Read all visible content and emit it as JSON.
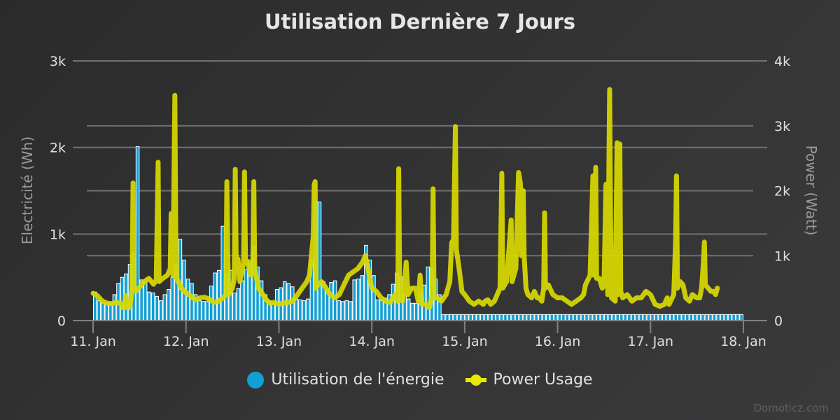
{
  "title": "Utilisation Dernière 7 Jours",
  "credits": "Domoticz.com",
  "colors": {
    "energy": "#119fd4",
    "energy_border": "#ffffff",
    "power": "#d9d900",
    "power_legend": "#e8e800",
    "grid": "#707070",
    "axis_label": "#9a9a9a",
    "tick_label": "#e0e0e0"
  },
  "legend": [
    {
      "label": "Utilisation de l'énergie",
      "symbol": "circle"
    },
    {
      "label": "Power Usage",
      "symbol": "line-marker"
    }
  ],
  "chart_data": {
    "type": "bar+line",
    "title": "Utilisation Dernière 7 Jours",
    "xlabel": "",
    "x_ticks": [
      "11. Jan",
      "12. Jan",
      "13. Jan",
      "14. Jan",
      "15. Jan",
      "16. Jan",
      "17. Jan",
      "18. Jan"
    ],
    "y_left": {
      "label": "Electricité (Wh)",
      "ticks": [
        "0",
        "1k",
        "2k",
        "3k"
      ],
      "range": [
        0,
        3000
      ]
    },
    "y_right": {
      "label": "Power (Watt)",
      "ticks": [
        "0",
        "1k",
        "2k",
        "3k",
        "4k"
      ],
      "range": [
        0,
        4000
      ]
    },
    "grid": true,
    "legend_position": "bottom",
    "series": [
      {
        "name": "Utilisation de l'énergie",
        "type": "bar",
        "axis": "left",
        "unit": "Wh",
        "interval_hours": 2,
        "start": "11. Jan 00:00",
        "values": [
          330,
          230,
          210,
          200,
          210,
          300,
          430,
          500,
          540,
          650,
          770,
          2010,
          470,
          450,
          330,
          320,
          280,
          230,
          300,
          360,
          500,
          650,
          940,
          700,
          480,
          430,
          300,
          230,
          220,
          220,
          400,
          550,
          580,
          1090,
          540,
          580,
          320,
          370,
          460,
          590,
          700,
          860,
          620,
          460,
          300,
          230,
          200,
          360,
          380,
          450,
          430,
          390,
          250,
          240,
          230,
          250,
          700,
          1380,
          1370,
          450,
          360,
          440,
          460,
          230,
          220,
          230,
          220,
          470,
          480,
          520,
          870,
          700,
          520,
          240,
          230,
          260,
          300,
          420,
          550,
          510,
          300,
          250,
          200,
          200,
          330,
          410,
          620,
          600,
          480,
          300,
          70,
          70,
          70,
          70,
          70,
          70,
          70,
          70,
          70,
          70,
          70,
          70,
          70,
          70,
          70,
          70,
          70,
          70,
          70,
          70,
          70,
          70,
          70,
          70,
          70,
          70,
          70,
          70,
          70,
          70,
          70,
          70,
          70,
          70,
          70,
          70,
          70,
          70,
          70,
          70,
          70,
          70,
          70,
          70,
          70,
          70,
          70,
          70,
          70,
          70,
          70,
          70,
          70,
          70,
          70,
          70,
          70,
          70,
          70,
          70,
          70,
          70,
          70,
          70,
          70,
          70,
          70,
          70,
          70,
          70,
          70,
          70,
          70,
          70,
          70,
          70,
          70,
          70
        ]
      },
      {
        "name": "Power Usage",
        "type": "line",
        "axis": "right",
        "unit": "Watt",
        "points_day_watt": [
          [
            0.0,
            420
          ],
          [
            0.05,
            380
          ],
          [
            0.1,
            300
          ],
          [
            0.15,
            270
          ],
          [
            0.2,
            260
          ],
          [
            0.25,
            280
          ],
          [
            0.3,
            260
          ],
          [
            0.32,
            200
          ],
          [
            0.34,
            200
          ],
          [
            0.35,
            380
          ],
          [
            0.37,
            200
          ],
          [
            0.39,
            200
          ],
          [
            0.4,
            250
          ],
          [
            0.42,
            500
          ],
          [
            0.43,
            2120
          ],
          [
            0.44,
            500
          ],
          [
            0.46,
            450
          ],
          [
            0.5,
            520
          ],
          [
            0.55,
            600
          ],
          [
            0.6,
            650
          ],
          [
            0.65,
            560
          ],
          [
            0.68,
            620
          ],
          [
            0.7,
            2440
          ],
          [
            0.71,
            600
          ],
          [
            0.75,
            650
          ],
          [
            0.8,
            700
          ],
          [
            0.83,
            800
          ],
          [
            0.84,
            1650
          ],
          [
            0.85,
            1650
          ],
          [
            0.86,
            700
          ],
          [
            0.88,
            3470
          ],
          [
            0.89,
            1300
          ],
          [
            0.9,
            650
          ],
          [
            0.95,
            500
          ],
          [
            1.0,
            430
          ],
          [
            1.05,
            380
          ],
          [
            1.1,
            320
          ],
          [
            1.15,
            350
          ],
          [
            1.2,
            360
          ],
          [
            1.25,
            330
          ],
          [
            1.3,
            280
          ],
          [
            1.35,
            300
          ],
          [
            1.4,
            350
          ],
          [
            1.43,
            400
          ],
          [
            1.44,
            2140
          ],
          [
            1.45,
            1000
          ],
          [
            1.46,
            400
          ],
          [
            1.5,
            500
          ],
          [
            1.52,
            650
          ],
          [
            1.53,
            2330
          ],
          [
            1.54,
            950
          ],
          [
            1.56,
            950
          ],
          [
            1.58,
            600
          ],
          [
            1.62,
            900
          ],
          [
            1.63,
            2290
          ],
          [
            1.64,
            950
          ],
          [
            1.66,
            900
          ],
          [
            1.7,
            700
          ],
          [
            1.72,
            950
          ],
          [
            1.73,
            2140
          ],
          [
            1.74,
            800
          ],
          [
            1.78,
            500
          ],
          [
            1.82,
            420
          ],
          [
            1.86,
            330
          ],
          [
            1.9,
            270
          ],
          [
            1.95,
            280
          ],
          [
            2.0,
            250
          ],
          [
            2.05,
            270
          ],
          [
            2.1,
            280
          ],
          [
            2.15,
            300
          ],
          [
            2.2,
            400
          ],
          [
            2.25,
            500
          ],
          [
            2.3,
            600
          ],
          [
            2.33,
            700
          ],
          [
            2.37,
            1300
          ],
          [
            2.38,
            2100
          ],
          [
            2.39,
            2140
          ],
          [
            2.4,
            500
          ],
          [
            2.42,
            550
          ],
          [
            2.46,
            600
          ],
          [
            2.5,
            520
          ],
          [
            2.55,
            400
          ],
          [
            2.6,
            350
          ],
          [
            2.65,
            400
          ],
          [
            2.7,
            550
          ],
          [
            2.75,
            700
          ],
          [
            2.8,
            750
          ],
          [
            2.85,
            800
          ],
          [
            2.9,
            900
          ],
          [
            2.93,
            1000
          ],
          [
            2.96,
            800
          ],
          [
            3.0,
            500
          ],
          [
            3.05,
            450
          ],
          [
            3.1,
            350
          ],
          [
            3.15,
            300
          ],
          [
            3.2,
            280
          ],
          [
            3.25,
            400
          ],
          [
            3.28,
            300
          ],
          [
            3.29,
            2340
          ],
          [
            3.3,
            450
          ],
          [
            3.33,
            300
          ],
          [
            3.35,
            500
          ],
          [
            3.37,
            900
          ],
          [
            3.39,
            400
          ],
          [
            3.43,
            500
          ],
          [
            3.47,
            500
          ],
          [
            3.5,
            300
          ],
          [
            3.52,
            700
          ],
          [
            3.54,
            250
          ],
          [
            3.58,
            250
          ],
          [
            3.62,
            200
          ],
          [
            3.65,
            400
          ],
          [
            3.66,
            2030
          ],
          [
            3.67,
            350
          ],
          [
            3.7,
            350
          ],
          [
            3.75,
            300
          ],
          [
            3.8,
            400
          ],
          [
            3.84,
            600
          ],
          [
            3.86,
            1200
          ],
          [
            3.88,
            1250
          ],
          [
            3.9,
            2990
          ],
          [
            3.91,
            1100
          ],
          [
            3.94,
            800
          ],
          [
            3.97,
            450
          ],
          [
            4.0,
            400
          ],
          [
            4.05,
            300
          ],
          [
            4.1,
            250
          ],
          [
            4.15,
            300
          ],
          [
            4.2,
            250
          ],
          [
            4.22,
            300
          ],
          [
            4.25,
            320
          ],
          [
            4.28,
            250
          ],
          [
            4.32,
            300
          ],
          [
            4.35,
            400
          ],
          [
            4.38,
            500
          ],
          [
            4.4,
            2270
          ],
          [
            4.41,
            500
          ],
          [
            4.45,
            600
          ],
          [
            4.5,
            1550
          ],
          [
            4.51,
            600
          ],
          [
            4.55,
            800
          ],
          [
            4.58,
            2280
          ],
          [
            4.59,
            2200
          ],
          [
            4.6,
            2100
          ],
          [
            4.61,
            1000
          ],
          [
            4.63,
            2000
          ],
          [
            4.64,
            1000
          ],
          [
            4.66,
            500
          ],
          [
            4.68,
            400
          ],
          [
            4.72,
            350
          ],
          [
            4.75,
            450
          ],
          [
            4.78,
            350
          ],
          [
            4.8,
            350
          ],
          [
            4.83,
            300
          ],
          [
            4.85,
            500
          ],
          [
            4.86,
            1660
          ],
          [
            4.87,
            500
          ],
          [
            4.9,
            550
          ],
          [
            4.95,
            400
          ],
          [
            5.0,
            350
          ],
          [
            5.05,
            350
          ],
          [
            5.1,
            300
          ],
          [
            5.15,
            250
          ],
          [
            5.2,
            300
          ],
          [
            5.25,
            350
          ],
          [
            5.28,
            400
          ],
          [
            5.3,
            550
          ],
          [
            5.35,
            700
          ],
          [
            5.38,
            2230
          ],
          [
            5.39,
            700
          ],
          [
            5.41,
            2360
          ],
          [
            5.42,
            650
          ],
          [
            5.45,
            650
          ],
          [
            5.48,
            500
          ],
          [
            5.5,
            550
          ],
          [
            5.52,
            2100
          ],
          [
            5.53,
            1300
          ],
          [
            5.54,
            400
          ],
          [
            5.56,
            3560
          ],
          [
            5.57,
            1600
          ],
          [
            5.58,
            350
          ],
          [
            5.62,
            300
          ],
          [
            5.64,
            2740
          ],
          [
            5.65,
            400
          ],
          [
            5.67,
            2720
          ],
          [
            5.68,
            450
          ],
          [
            5.7,
            350
          ],
          [
            5.75,
            400
          ],
          [
            5.8,
            300
          ],
          [
            5.85,
            350
          ],
          [
            5.9,
            350
          ],
          [
            5.95,
            450
          ],
          [
            6.0,
            400
          ],
          [
            6.05,
            250
          ],
          [
            6.1,
            220
          ],
          [
            6.15,
            250
          ],
          [
            6.18,
            350
          ],
          [
            6.2,
            250
          ],
          [
            6.25,
            400
          ],
          [
            6.27,
            1200
          ],
          [
            6.28,
            2230
          ],
          [
            6.29,
            500
          ],
          [
            6.32,
            600
          ],
          [
            6.35,
            550
          ],
          [
            6.38,
            350
          ],
          [
            6.42,
            300
          ],
          [
            6.45,
            400
          ],
          [
            6.5,
            350
          ],
          [
            6.53,
            350
          ],
          [
            6.55,
            500
          ],
          [
            6.57,
            900
          ],
          [
            6.58,
            1210
          ],
          [
            6.59,
            550
          ],
          [
            6.62,
            500
          ],
          [
            6.65,
            450
          ],
          [
            6.68,
            450
          ],
          [
            6.7,
            400
          ],
          [
            6.72,
            500
          ]
        ]
      }
    ]
  }
}
